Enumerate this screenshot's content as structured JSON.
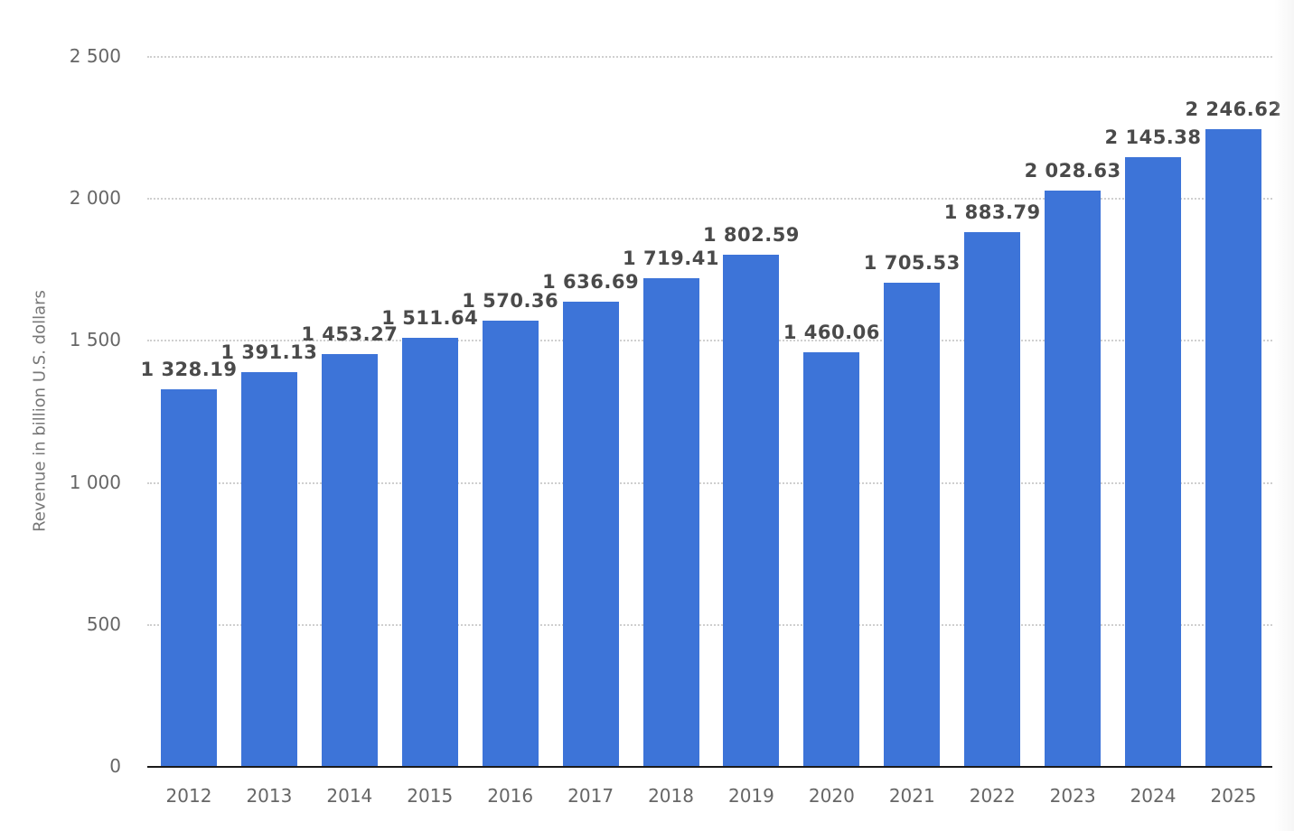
{
  "chart_data": {
    "type": "bar",
    "title": "",
    "xlabel": "",
    "ylabel": "Revenue in billion U.S. dollars",
    "ylim": [
      0,
      2500
    ],
    "yticks": [
      0,
      500,
      1000,
      1500,
      2000,
      2500
    ],
    "ytick_labels": [
      "0",
      "500",
      "1 000",
      "1 500",
      "2 000",
      "2 500"
    ],
    "grid": true,
    "legend": null,
    "bar_color": "#3d74d8",
    "categories": [
      "2012",
      "2013",
      "2014",
      "2015",
      "2016",
      "2017",
      "2018",
      "2019",
      "2020",
      "2021",
      "2022",
      "2023",
      "2024",
      "2025"
    ],
    "values": [
      1328.19,
      1391.13,
      1453.27,
      1511.64,
      1570.36,
      1636.69,
      1719.41,
      1802.59,
      1460.06,
      1705.53,
      1883.79,
      2028.63,
      2145.38,
      2246.62
    ],
    "value_labels": [
      "1 328.19",
      "1 391.13",
      "1 453.27",
      "1 511.64",
      "1 570.36",
      "1 636.69",
      "1 719.41",
      "1 802.59",
      "1 460.06",
      "1 705.53",
      "1 883.79",
      "2 028.63",
      "2 145.38",
      "2 246.62"
    ]
  }
}
